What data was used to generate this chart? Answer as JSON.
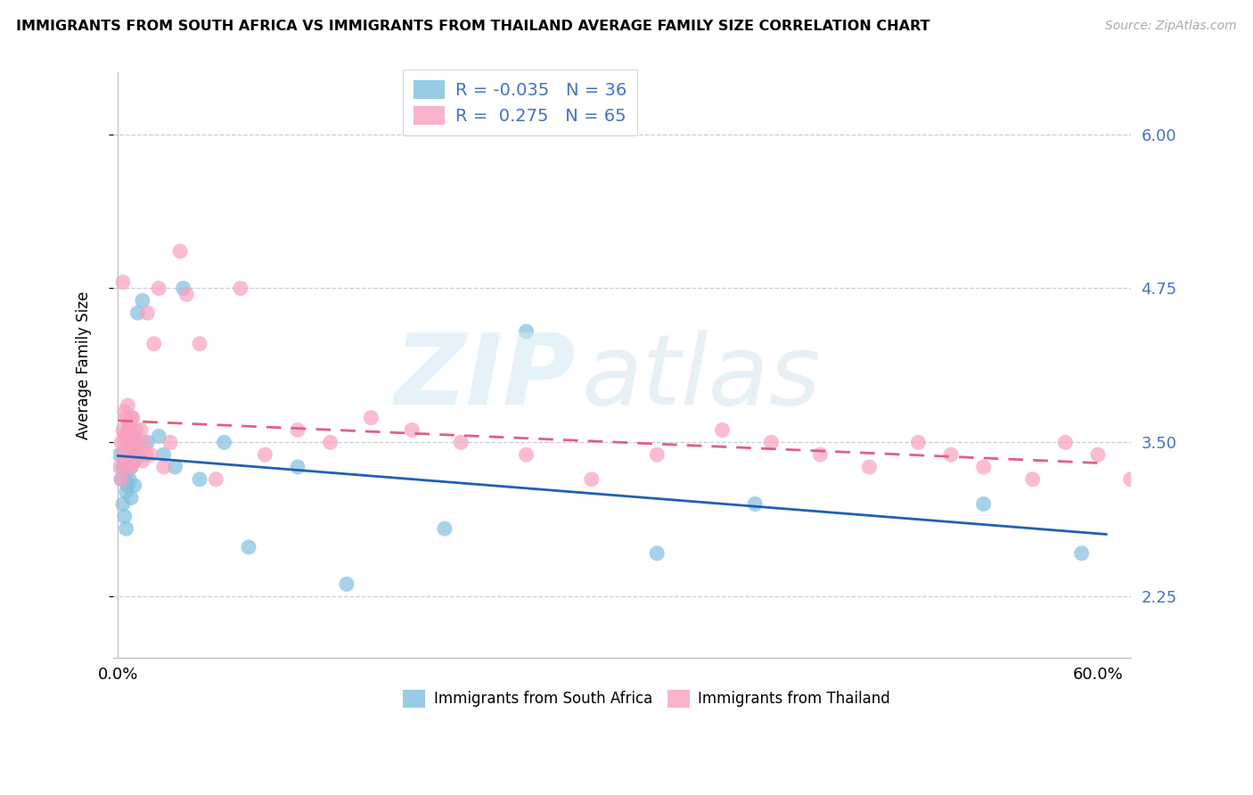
{
  "title": "IMMIGRANTS FROM SOUTH AFRICA VS IMMIGRANTS FROM THAILAND AVERAGE FAMILY SIZE CORRELATION CHART",
  "source": "Source: ZipAtlas.com",
  "ylabel": "Average Family Size",
  "yticks": [
    2.25,
    3.5,
    4.75,
    6.0
  ],
  "ytick_color": "#4472c4",
  "ylim": [
    1.75,
    6.5
  ],
  "xlim": [
    -0.003,
    0.62
  ],
  "sa_color": "#7fbfdf",
  "th_color": "#f8a0c0",
  "sa_line_color": "#2060b0",
  "th_line_color": "#e06080",
  "th_line_dash_color": "#c07090",
  "south_africa_x": [
    0.001,
    0.002,
    0.003,
    0.003,
    0.004,
    0.004,
    0.005,
    0.005,
    0.005,
    0.006,
    0.006,
    0.007,
    0.007,
    0.008,
    0.008,
    0.009,
    0.01,
    0.01,
    0.012,
    0.015,
    0.018,
    0.025,
    0.028,
    0.035,
    0.04,
    0.05,
    0.065,
    0.08,
    0.11,
    0.14,
    0.2,
    0.25,
    0.33,
    0.39,
    0.53,
    0.59
  ],
  "south_africa_y": [
    3.4,
    3.2,
    3.3,
    3.0,
    3.35,
    2.9,
    3.25,
    3.1,
    2.8,
    3.15,
    3.4,
    3.5,
    3.2,
    3.3,
    3.05,
    3.4,
    3.35,
    3.15,
    4.55,
    4.65,
    3.5,
    3.55,
    3.4,
    3.3,
    4.75,
    3.2,
    3.5,
    2.65,
    3.3,
    2.35,
    2.8,
    4.4,
    2.6,
    3.0,
    3.0,
    2.6
  ],
  "thailand_x": [
    0.001,
    0.002,
    0.002,
    0.003,
    0.003,
    0.003,
    0.004,
    0.004,
    0.004,
    0.005,
    0.005,
    0.005,
    0.006,
    0.006,
    0.006,
    0.007,
    0.007,
    0.007,
    0.008,
    0.008,
    0.008,
    0.009,
    0.009,
    0.009,
    0.01,
    0.01,
    0.011,
    0.011,
    0.012,
    0.013,
    0.014,
    0.015,
    0.016,
    0.017,
    0.018,
    0.02,
    0.022,
    0.025,
    0.028,
    0.032,
    0.038,
    0.042,
    0.05,
    0.06,
    0.075,
    0.09,
    0.11,
    0.13,
    0.155,
    0.18,
    0.21,
    0.25,
    0.29,
    0.33,
    0.37,
    0.4,
    0.43,
    0.46,
    0.49,
    0.51,
    0.53,
    0.56,
    0.58,
    0.6,
    0.62
  ],
  "thailand_y": [
    3.3,
    3.5,
    3.2,
    3.4,
    3.6,
    4.8,
    3.35,
    3.55,
    3.75,
    3.3,
    3.5,
    3.7,
    3.4,
    3.6,
    3.8,
    3.35,
    3.5,
    3.65,
    3.3,
    3.5,
    3.7,
    3.4,
    3.55,
    3.7,
    3.35,
    3.5,
    3.4,
    3.6,
    3.5,
    3.4,
    3.6,
    3.35,
    3.5,
    3.4,
    4.55,
    3.4,
    4.3,
    4.75,
    3.3,
    3.5,
    5.05,
    4.7,
    4.3,
    3.2,
    4.75,
    3.4,
    3.6,
    3.5,
    3.7,
    3.6,
    3.5,
    3.4,
    3.2,
    3.4,
    3.6,
    3.5,
    3.4,
    3.3,
    3.5,
    3.4,
    3.3,
    3.2,
    3.5,
    3.4,
    3.2
  ],
  "legend_sa_R": "-0.035",
  "legend_sa_N": "36",
  "legend_th_R": "0.275",
  "legend_th_N": "65",
  "watermark_zip": "ZIP",
  "watermark_atlas": "atlas"
}
